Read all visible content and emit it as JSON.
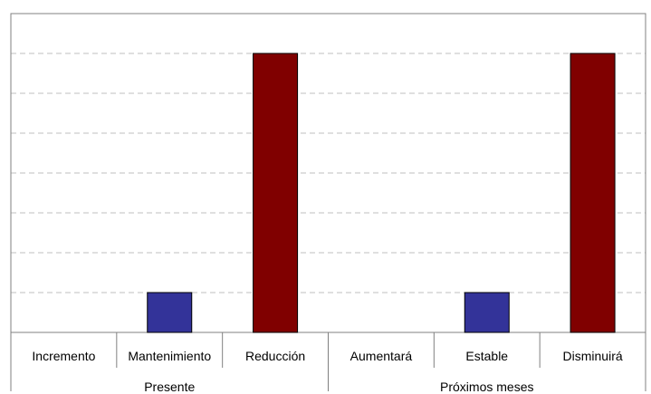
{
  "chart_data": {
    "type": "bar",
    "title": "",
    "xlabel": "",
    "ylabel": "",
    "ylim": [
      0,
      8
    ],
    "grid": true,
    "categories": [
      "Incremento",
      "Mantenimiento",
      "Reducción",
      "Aumentará",
      "Estable",
      "Disminuirá"
    ],
    "groups": [
      {
        "label": "Presente",
        "categories": [
          "Incremento",
          "Mantenimiento",
          "Reducción"
        ]
      },
      {
        "label": "Próximos meses",
        "categories": [
          "Aumentará",
          "Estable",
          "Disminuirá"
        ]
      }
    ],
    "values": [
      0,
      1,
      7,
      0,
      1,
      7
    ],
    "bar_colors": [
      "#333399",
      "#333399",
      "#800000",
      "#333399",
      "#333399",
      "#800000"
    ],
    "gridline_color": "#bfbfbf",
    "axis_color": "#808080"
  }
}
